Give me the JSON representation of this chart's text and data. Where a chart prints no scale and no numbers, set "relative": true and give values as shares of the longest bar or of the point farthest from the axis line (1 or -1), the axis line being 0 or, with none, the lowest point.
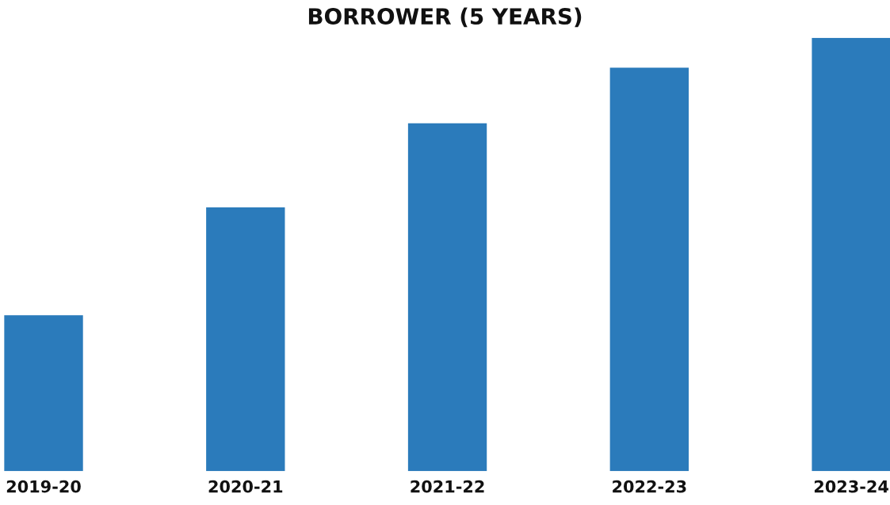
{
  "chart_data": {
    "type": "bar",
    "title": "BORROWER (5 YEARS)",
    "categories": [
      "2019-20",
      "2020-21",
      "2021-22",
      "2022-23",
      "2023-24"
    ],
    "values": [
      0.36,
      0.609,
      0.803,
      0.931,
      1
    ],
    "color": "#2b7bbb",
    "relative": true,
    "grid": false,
    "legend": false
  }
}
